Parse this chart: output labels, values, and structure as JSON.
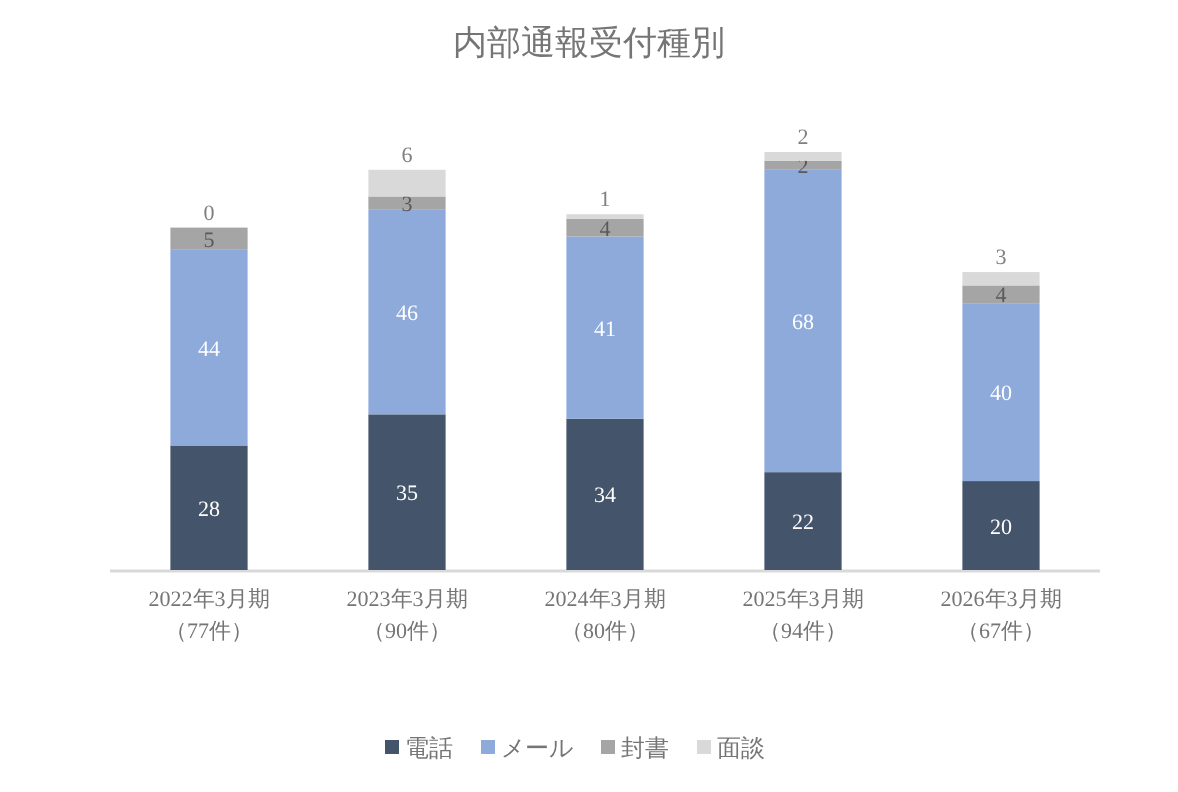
{
  "chart_data": {
    "type": "bar",
    "title": "内部通報受付種別",
    "stacked": true,
    "data_labels": true,
    "legend": "bottom",
    "categories": [
      "2022年3月期（77件）",
      "2023年3月期（90件）",
      "2024年3月期（80件）",
      "2025年3月期（94件）",
      "2026年3月期（67件）"
    ],
    "series": [
      {
        "name": "電話",
        "color": "#44546a",
        "values": [
          28,
          35,
          34,
          22,
          20
        ]
      },
      {
        "name": "メール",
        "color": "#8eaadb",
        "values": [
          44,
          46,
          41,
          68,
          40
        ]
      },
      {
        "name": "封書",
        "color": "#a5a5a5",
        "values": [
          5,
          3,
          4,
          2,
          4
        ]
      },
      {
        "name": "面談",
        "color": "#d9d9d9",
        "values": [
          0,
          6,
          1,
          2,
          3
        ]
      }
    ]
  }
}
